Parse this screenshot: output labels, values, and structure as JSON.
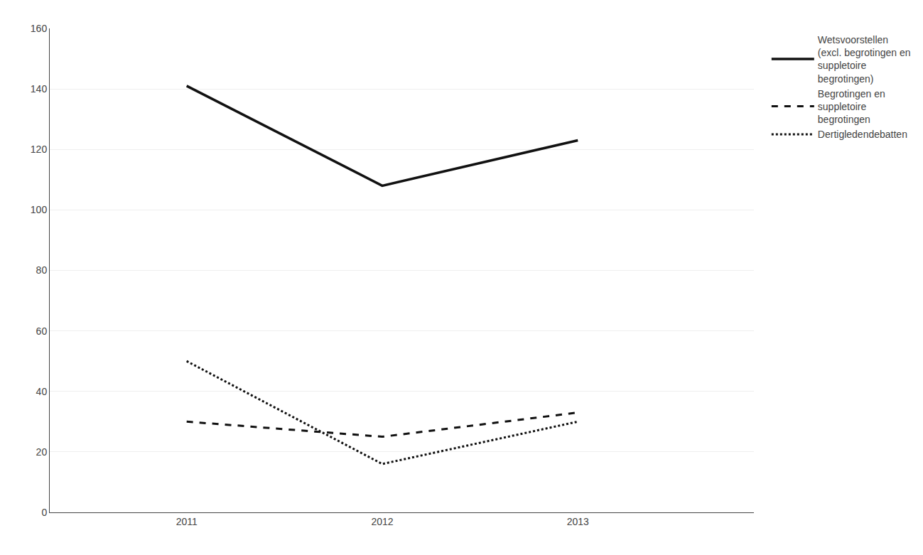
{
  "chart_data": {
    "type": "line",
    "x": [
      2011,
      2012,
      2013
    ],
    "series": [
      {
        "name": "Wetsvoorstellen\n(excl. begrotingen en\nsuppletoire\nbegrotingen)",
        "color": "#111111",
        "line_style": "solid",
        "values": [
          141,
          108,
          123
        ]
      },
      {
        "name": "Begrotingen en\nsuppletoire\nbegrotingen",
        "color": "#111111",
        "line_style": "dashed",
        "values": [
          30,
          25,
          33
        ]
      },
      {
        "name": "Dertigledendebatten",
        "color": "#111111",
        "line_style": "dotted",
        "values": [
          50,
          16,
          30
        ]
      }
    ],
    "xlim": [
      2010.3,
      2013.9
    ],
    "xticks": [
      2011,
      2012,
      2013
    ],
    "ylim": [
      0,
      160
    ],
    "yticks": [
      0,
      20,
      40,
      60,
      80,
      100,
      120,
      140,
      160
    ],
    "grid": "y",
    "legend": "right"
  }
}
